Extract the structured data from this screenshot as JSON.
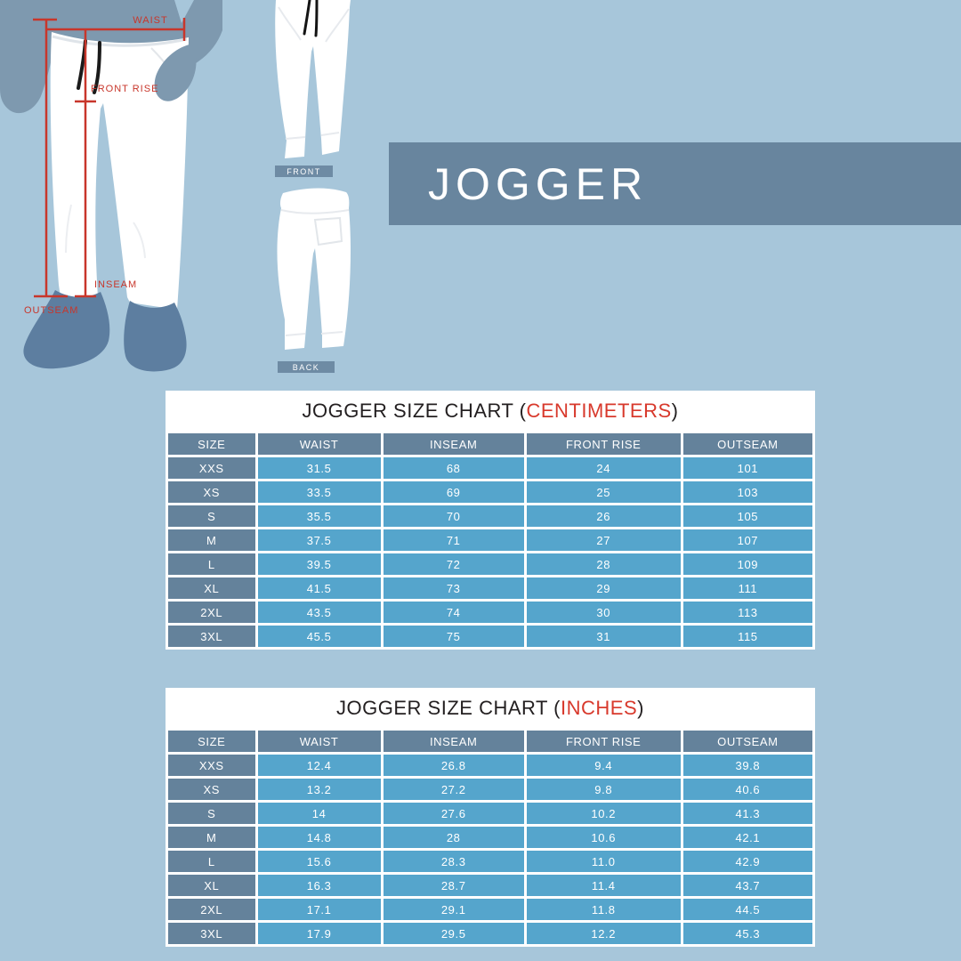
{
  "page": {
    "background": "#a7c6da"
  },
  "colors": {
    "background": "#a7c6da",
    "banner_blue": "#68859e",
    "header_gray_blue": "#64829b",
    "data_cell_blue": "#55a5cc",
    "accent_red": "#d8392c",
    "measure_line_red": "#c8362b",
    "torso_blue": "#7e99af",
    "shoe_blue": "#5d7ea0",
    "pants_white": "#ffffff",
    "title_black": "#231f20"
  },
  "banner": {
    "title": "JOGGER"
  },
  "diagram": {
    "measurement_labels": {
      "waist": "WAIST",
      "front_rise": "FRONT RISE",
      "inseam": "INSEAM",
      "outseam": "OUTSEAM"
    },
    "view_labels": {
      "front": "FRONT",
      "back": "BACK"
    }
  },
  "tables": [
    {
      "title_prefix": "JOGGER SIZE CHART (",
      "unit": "CENTIMETERS",
      "title_suffix": ")",
      "columns": [
        "SIZE",
        "WAIST",
        "INSEAM",
        "FRONT RISE",
        "OUTSEAM"
      ],
      "rows": [
        {
          "size": "XXS",
          "values": [
            "31.5",
            "68",
            "24",
            "101"
          ]
        },
        {
          "size": "XS",
          "values": [
            "33.5",
            "69",
            "25",
            "103"
          ]
        },
        {
          "size": "S",
          "values": [
            "35.5",
            "70",
            "26",
            "105"
          ]
        },
        {
          "size": "M",
          "values": [
            "37.5",
            "71",
            "27",
            "107"
          ]
        },
        {
          "size": "L",
          "values": [
            "39.5",
            "72",
            "28",
            "109"
          ]
        },
        {
          "size": "XL",
          "values": [
            "41.5",
            "73",
            "29",
            "111"
          ]
        },
        {
          "size": "2XL",
          "values": [
            "43.5",
            "74",
            "30",
            "113"
          ]
        },
        {
          "size": "3XL",
          "values": [
            "45.5",
            "75",
            "31",
            "115"
          ]
        }
      ]
    },
    {
      "title_prefix": "JOGGER SIZE CHART (",
      "unit": "INCHES",
      "title_suffix": ")",
      "columns": [
        "SIZE",
        "WAIST",
        "INSEAM",
        "FRONT RISE",
        "OUTSEAM"
      ],
      "rows": [
        {
          "size": "XXS",
          "values": [
            "12.4",
            "26.8",
            "9.4",
            "39.8"
          ]
        },
        {
          "size": "XS",
          "values": [
            "13.2",
            "27.2",
            "9.8",
            "40.6"
          ]
        },
        {
          "size": "S",
          "values": [
            "14",
            "27.6",
            "10.2",
            "41.3"
          ]
        },
        {
          "size": "M",
          "values": [
            "14.8",
            "28",
            "10.6",
            "42.1"
          ]
        },
        {
          "size": "L",
          "values": [
            "15.6",
            "28.3",
            "11.0",
            "42.9"
          ]
        },
        {
          "size": "XL",
          "values": [
            "16.3",
            "28.7",
            "11.4",
            "43.7"
          ]
        },
        {
          "size": "2XL",
          "values": [
            "17.1",
            "29.1",
            "11.8",
            "44.5"
          ]
        },
        {
          "size": "3XL",
          "values": [
            "17.9",
            "29.5",
            "12.2",
            "45.3"
          ]
        }
      ]
    }
  ]
}
